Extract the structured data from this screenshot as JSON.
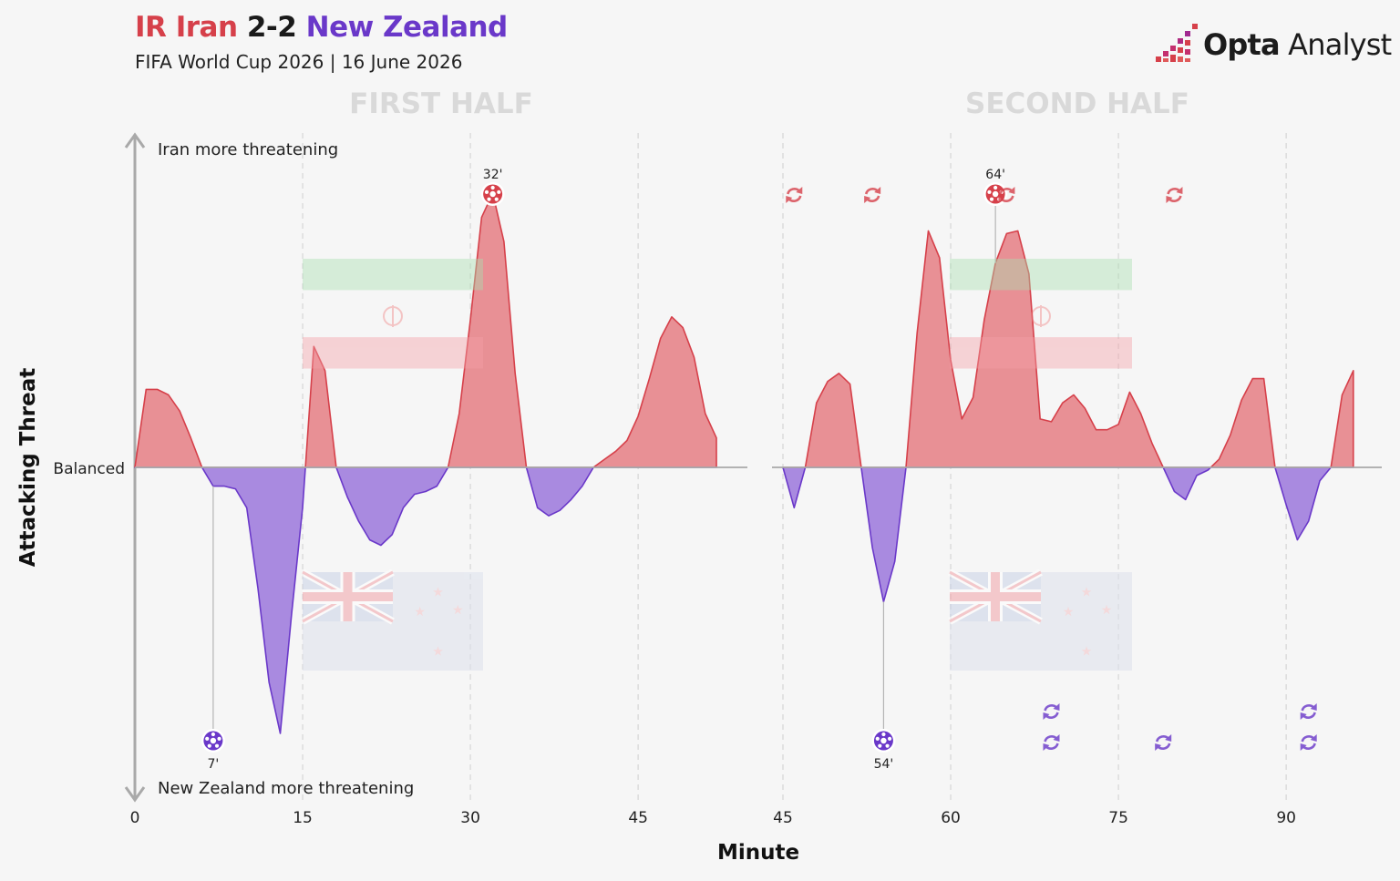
{
  "header": {
    "home": "IR Iran",
    "score": "2-2",
    "away": "New Zealand",
    "subtitle": "FIFA World Cup 2026 | 16 June 2026",
    "brand_bold": "Opta",
    "brand_light": " Analyst"
  },
  "colors": {
    "home": "#d6404a",
    "home_fill": "#e89095",
    "away": "#6a38c9",
    "away_fill": "#a98ae0",
    "axis": "#a9a9a9",
    "grid": "#dcdcdc",
    "half_label": "#d9d9d9"
  },
  "icons": {
    "goal": "soccer-ball-icon",
    "substitution": "substitution-arrows-icon",
    "home_flag": "iran-flag-watermark",
    "away_flag": "new-zealand-flag-watermark",
    "brand_logo": "opta-bars-logo"
  },
  "chart_data": {
    "type": "area",
    "title": "IR Iran 2-2 New Zealand",
    "ylabel": "Attacking Threat",
    "xlabel": "Minute",
    "y_top_label": "Iran more threatening",
    "y_mid_label": "Balanced",
    "y_bottom_label": "New Zealand more threatening",
    "ylim": [
      -1,
      1
    ],
    "grid": "vertical dashed at 15-minute marks",
    "panels": [
      {
        "label": "FIRST HALF",
        "xlim": [
          0,
          54.5
        ],
        "ticks": [
          0,
          15,
          30,
          45
        ],
        "series": {
          "x": [
            0,
            1,
            2,
            3,
            4,
            5,
            6,
            7,
            8,
            9,
            10,
            11,
            12,
            13,
            14,
            15,
            16,
            17,
            18,
            19,
            20,
            21,
            22,
            23,
            24,
            25,
            26,
            27,
            28,
            29,
            30,
            31,
            32,
            33,
            34,
            35,
            36,
            37,
            38,
            39,
            40,
            41,
            42,
            43,
            44,
            45,
            46,
            47,
            48,
            49,
            50,
            51,
            52
          ],
          "y": [
            0.0,
            0.29,
            0.29,
            0.27,
            0.21,
            0.11,
            0.0,
            -0.07,
            -0.07,
            -0.08,
            -0.15,
            -0.45,
            -0.8,
            -0.99,
            -0.55,
            -0.15,
            0.45,
            0.36,
            0.0,
            -0.11,
            -0.2,
            -0.27,
            -0.29,
            -0.25,
            -0.15,
            -0.1,
            -0.09,
            -0.07,
            0.0,
            0.2,
            0.55,
            0.93,
            1.02,
            0.84,
            0.35,
            0.0,
            -0.15,
            -0.18,
            -0.16,
            -0.12,
            -0.07,
            0.0,
            0.03,
            0.06,
            0.1,
            0.19,
            0.33,
            0.48,
            0.56,
            0.52,
            0.41,
            0.2,
            0.11
          ]
        },
        "events": [
          {
            "team": "New Zealand",
            "type": "goal",
            "minute": 7,
            "label": "7'"
          },
          {
            "team": "IR Iran",
            "type": "goal",
            "minute": 32,
            "label": "32'"
          }
        ]
      },
      {
        "label": "SECOND HALF",
        "xlim": [
          45,
          98.7
        ],
        "ticks": [
          45,
          60,
          75,
          90
        ],
        "series": {
          "x": [
            45,
            46,
            47,
            48,
            49,
            50,
            51,
            52,
            53,
            54,
            55,
            56,
            57,
            58,
            59,
            60,
            61,
            62,
            63,
            64,
            65,
            66,
            67,
            68,
            69,
            70,
            71,
            72,
            73,
            74,
            75,
            76,
            77,
            78,
            79,
            80,
            81,
            82,
            83,
            84,
            85,
            86,
            87,
            88,
            89,
            90,
            91,
            92,
            93,
            94,
            95,
            96
          ],
          "y": [
            0.0,
            -0.15,
            0.0,
            0.24,
            0.32,
            0.35,
            0.31,
            0.0,
            -0.3,
            -0.5,
            -0.35,
            0.0,
            0.5,
            0.88,
            0.78,
            0.4,
            0.18,
            0.26,
            0.55,
            0.76,
            0.87,
            0.88,
            0.72,
            0.18,
            0.17,
            0.24,
            0.27,
            0.22,
            0.14,
            0.14,
            0.16,
            0.28,
            0.2,
            0.09,
            0.0,
            -0.09,
            -0.12,
            -0.03,
            -0.01,
            0.03,
            0.12,
            0.25,
            0.33,
            0.33,
            0.0,
            -0.14,
            -0.27,
            -0.2,
            -0.05,
            0.0,
            0.27,
            0.36
          ]
        },
        "events": [
          {
            "team": "New Zealand",
            "type": "goal",
            "minute": 54,
            "label": "54'"
          },
          {
            "team": "IR Iran",
            "type": "goal",
            "minute": 64,
            "label": "64'"
          },
          {
            "team": "IR Iran",
            "type": "substitution",
            "minute": 46
          },
          {
            "team": "IR Iran",
            "type": "substitution",
            "minute": 53
          },
          {
            "team": "IR Iran",
            "type": "substitution",
            "minute": 65
          },
          {
            "team": "IR Iran",
            "type": "substitution",
            "minute": 80
          },
          {
            "team": "New Zealand",
            "type": "substitution",
            "minute": 69
          },
          {
            "team": "New Zealand",
            "type": "substitution",
            "minute": 69
          },
          {
            "team": "New Zealand",
            "type": "substitution",
            "minute": 79
          },
          {
            "team": "New Zealand",
            "type": "substitution",
            "minute": 92
          },
          {
            "team": "New Zealand",
            "type": "substitution",
            "minute": 92
          }
        ]
      }
    ]
  }
}
